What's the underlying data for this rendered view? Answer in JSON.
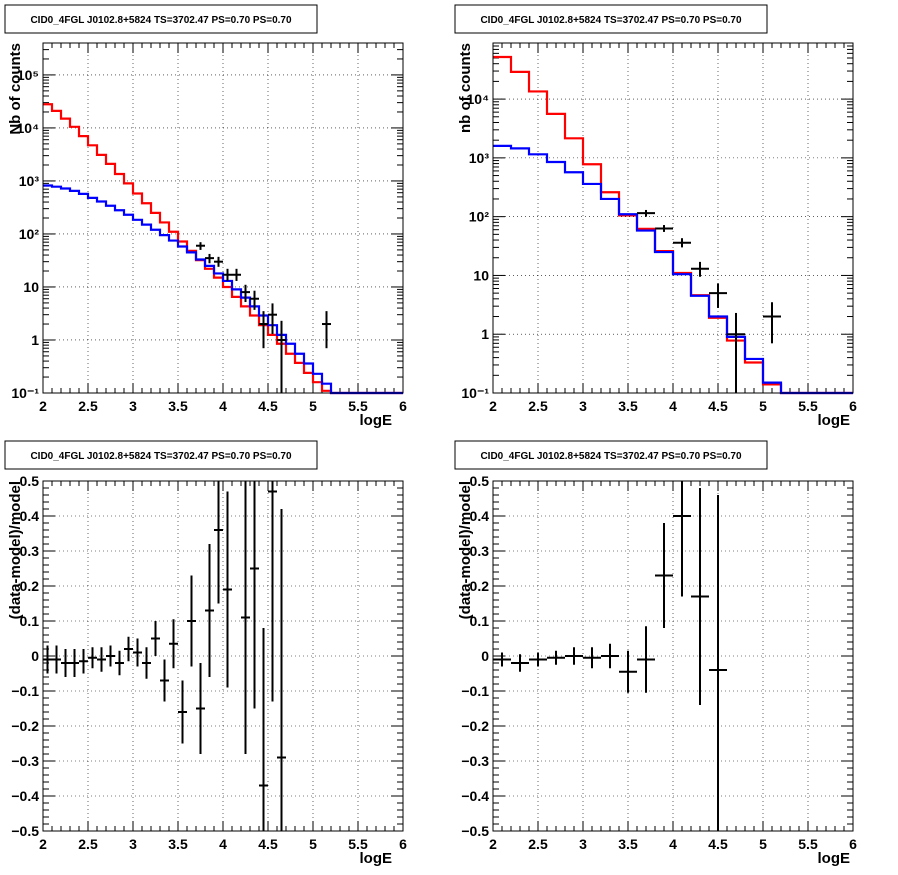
{
  "chart_data": [
    {
      "type": "line",
      "title": "CID0_4FGL J0102.8+5824 TS=3702.47 PS=0.70 PS=0.70",
      "xlabel": "logE",
      "ylabel": "Nb of counts",
      "log_y": true,
      "xlim": [
        2,
        6
      ],
      "ylim": [
        0.1,
        400000
      ],
      "grid": true,
      "xticks": [
        2,
        2.5,
        3,
        3.5,
        4,
        4.5,
        5,
        5.5,
        6
      ],
      "xtick_labels": [
        "2",
        "2.5",
        "3",
        "3.5",
        "4",
        "4.5",
        "5",
        "5.5",
        "6"
      ],
      "yticks": [
        0.1,
        1,
        10,
        100,
        1000,
        10000,
        100000
      ],
      "ytick_labels": [
        "10⁻¹",
        "1",
        "10",
        "10²",
        "10³",
        "10⁴",
        "10⁵"
      ],
      "bin_edges": [
        2.0,
        2.1,
        2.2,
        2.3,
        2.4,
        2.5,
        2.6,
        2.7,
        2.8,
        2.9,
        3.0,
        3.1,
        3.2,
        3.3,
        3.4,
        3.5,
        3.6,
        3.7,
        3.8,
        3.9,
        4.0,
        4.1,
        4.2,
        4.3,
        4.4,
        4.5,
        4.6,
        4.7,
        4.8,
        4.9,
        5.0,
        5.1,
        5.2,
        5.3,
        5.4,
        5.5,
        5.6,
        5.7,
        5.8,
        5.9,
        6.0
      ],
      "series": [
        {
          "color": "#ff0000",
          "values": [
            28000,
            21000,
            15000,
            10500,
            7000,
            4700,
            3100,
            2100,
            1350,
            900,
            580,
            380,
            250,
            165,
            110,
            72,
            48,
            32,
            22,
            15,
            10,
            6.5,
            4.3,
            2.9,
            1.9,
            1.25,
            0.85,
            0.55,
            0.37,
            0.24,
            0.16,
            0.11,
            0.1,
            0.1,
            0.1,
            0.1,
            0.1,
            0.1,
            0.1,
            0.1
          ]
        },
        {
          "color": "#0000ff",
          "values": [
            820,
            780,
            720,
            650,
            570,
            480,
            410,
            340,
            280,
            230,
            185,
            150,
            120,
            95,
            75,
            58,
            45,
            33,
            25,
            18,
            13,
            9,
            6.3,
            4.3,
            2.9,
            1.9,
            1.25,
            0.85,
            0.55,
            0.36,
            0.23,
            0.15,
            0.1,
            0.1,
            0.1,
            0.1,
            0.1,
            0.1,
            0.1,
            0.1
          ]
        },
        {
          "color": "#000000",
          "type": "errorbar",
          "points": [
            {
              "x": 3.75,
              "y": 60,
              "ylo": 50,
              "yhi": 70
            },
            {
              "x": 3.85,
              "y": 35,
              "ylo": 28,
              "yhi": 42
            },
            {
              "x": 3.95,
              "y": 30,
              "ylo": 24,
              "yhi": 37
            },
            {
              "x": 4.05,
              "y": 17,
              "ylo": 13,
              "yhi": 22
            },
            {
              "x": 4.15,
              "y": 17,
              "ylo": 13,
              "yhi": 22
            },
            {
              "x": 4.25,
              "y": 8,
              "ylo": 5.2,
              "yhi": 11
            },
            {
              "x": 4.35,
              "y": 6,
              "ylo": 3.7,
              "yhi": 8.5
            },
            {
              "x": 4.45,
              "y": 2,
              "ylo": 0.7,
              "yhi": 3.5
            },
            {
              "x": 4.55,
              "y": 3,
              "ylo": 1.3,
              "yhi": 4.9
            },
            {
              "x": 4.65,
              "y": 1,
              "ylo": 0.1,
              "yhi": 2.3
            },
            {
              "x": 5.15,
              "y": 2,
              "ylo": 0.7,
              "yhi": 3.5
            }
          ]
        }
      ]
    },
    {
      "type": "line",
      "title": "CID0_4FGL J0102.8+5824 TS=3702.47 PS=0.70 PS=0.70",
      "xlabel": "logE",
      "ylabel": "nb of counts",
      "log_y": true,
      "xlim": [
        2,
        6
      ],
      "ylim": [
        0.1,
        90000
      ],
      "grid": true,
      "xticks": [
        2,
        2.5,
        3,
        3.5,
        4,
        4.5,
        5,
        5.5,
        6
      ],
      "xtick_labels": [
        "2",
        "2.5",
        "3",
        "3.5",
        "4",
        "4.5",
        "5",
        "5.5",
        "6"
      ],
      "yticks": [
        0.1,
        1,
        10,
        100,
        1000,
        10000
      ],
      "ytick_labels": [
        "10⁻¹",
        "1",
        "10",
        "10²",
        "10³",
        "10⁴"
      ],
      "bin_edges": [
        2.0,
        2.2,
        2.4,
        2.6,
        2.8,
        3.0,
        3.2,
        3.4,
        3.6,
        3.8,
        4.0,
        4.2,
        4.4,
        4.6,
        4.8,
        5.0,
        5.2,
        5.4,
        5.6,
        5.8,
        6.0
      ],
      "series": [
        {
          "color": "#ff0000",
          "values": [
            52000,
            29000,
            13500,
            5600,
            2150,
            780,
            260,
            105,
            62,
            26,
            11,
            4.6,
            1.9,
            0.78,
            0.33,
            0.14,
            0.1,
            0.1,
            0.1,
            0.1
          ]
        },
        {
          "color": "#0000ff",
          "values": [
            1600,
            1450,
            1150,
            850,
            570,
            360,
            200,
            110,
            58,
            25,
            10.5,
            4.5,
            2.0,
            0.9,
            0.38,
            0.15,
            0.1,
            0.1,
            0.1,
            0.1
          ]
        },
        {
          "color": "#000000",
          "type": "errorbar",
          "points": [
            {
              "x": 3.7,
              "y": 115,
              "ylo": 100,
              "yhi": 130
            },
            {
              "x": 3.9,
              "y": 63,
              "ylo": 55,
              "yhi": 72
            },
            {
              "x": 4.1,
              "y": 36,
              "ylo": 30,
              "yhi": 43
            },
            {
              "x": 4.3,
              "y": 13,
              "ylo": 9.5,
              "yhi": 17
            },
            {
              "x": 4.5,
              "y": 5,
              "ylo": 2.8,
              "yhi": 7.3
            },
            {
              "x": 4.7,
              "y": 1,
              "ylo": 0.1,
              "yhi": 2.3
            },
            {
              "x": 5.1,
              "y": 2,
              "ylo": 0.7,
              "yhi": 3.5
            }
          ]
        }
      ]
    },
    {
      "type": "scatter",
      "title": "CID0_4FGL J0102.8+5824 TS=3702.47 PS=0.70 PS=0.70",
      "xlabel": "logE",
      "ylabel": "(data-model)/model",
      "xlim": [
        2,
        6
      ],
      "ylim": [
        -0.5,
        0.5
      ],
      "grid": true,
      "xticks": [
        2,
        2.5,
        3,
        3.5,
        4,
        4.5,
        5,
        5.5,
        6
      ],
      "xtick_labels": [
        "2",
        "2.5",
        "3",
        "3.5",
        "4",
        "4.5",
        "5",
        "5.5",
        "6"
      ],
      "yticks": [
        -0.5,
        -0.4,
        -0.3,
        -0.2,
        -0.1,
        0,
        0.1,
        0.2,
        0.3,
        0.4,
        0.5
      ],
      "ytick_labels": [
        "−0.5",
        "−0.4",
        "−0.3",
        "−0.2",
        "−0.1",
        "0",
        "0.1",
        "0.2",
        "0.3",
        "0.4",
        "0.5"
      ],
      "bin_width": 0.1,
      "points": [
        {
          "x": 2.05,
          "y": -0.01,
          "err": 0.04
        },
        {
          "x": 2.15,
          "y": -0.01,
          "err": 0.04
        },
        {
          "x": 2.25,
          "y": -0.02,
          "err": 0.04
        },
        {
          "x": 2.35,
          "y": -0.02,
          "err": 0.04
        },
        {
          "x": 2.45,
          "y": -0.015,
          "err": 0.035
        },
        {
          "x": 2.55,
          "y": -0.005,
          "err": 0.03
        },
        {
          "x": 2.65,
          "y": -0.01,
          "err": 0.035
        },
        {
          "x": 2.75,
          "y": 0.0,
          "err": 0.03
        },
        {
          "x": 2.85,
          "y": -0.02,
          "err": 0.035
        },
        {
          "x": 2.95,
          "y": 0.02,
          "err": 0.035
        },
        {
          "x": 3.05,
          "y": 0.01,
          "err": 0.04
        },
        {
          "x": 3.15,
          "y": -0.02,
          "err": 0.045
        },
        {
          "x": 3.25,
          "y": 0.05,
          "err": 0.05
        },
        {
          "x": 3.35,
          "y": -0.07,
          "err": 0.06
        },
        {
          "x": 3.45,
          "y": 0.035,
          "err": 0.07
        },
        {
          "x": 3.55,
          "y": -0.16,
          "err": 0.09
        },
        {
          "x": 3.65,
          "y": 0.1,
          "err": 0.13
        },
        {
          "x": 3.75,
          "y": -0.15,
          "err": 0.13
        },
        {
          "x": 3.85,
          "y": 0.13,
          "err": 0.19
        },
        {
          "x": 3.95,
          "y": 0.36,
          "err": 0.21
        },
        {
          "x": 4.05,
          "y": 0.19,
          "err": 0.28
        },
        {
          "x": 4.25,
          "y": 0.11,
          "err": 0.39
        },
        {
          "x": 4.35,
          "y": 0.25,
          "err": 0.4
        },
        {
          "x": 4.45,
          "y": -0.37,
          "err": 0.45
        },
        {
          "x": 4.55,
          "y": 0.47,
          "err": 0.6
        },
        {
          "x": 4.65,
          "y": -0.29,
          "err": 0.71
        }
      ]
    },
    {
      "type": "scatter",
      "title": "CID0_4FGL J0102.8+5824 TS=3702.47 PS=0.70 PS=0.70",
      "xlabel": "logE",
      "ylabel": "(data-model)/model",
      "xlim": [
        2,
        6
      ],
      "ylim": [
        -0.5,
        0.5
      ],
      "grid": true,
      "xticks": [
        2,
        2.5,
        3,
        3.5,
        4,
        4.5,
        5,
        5.5,
        6
      ],
      "xtick_labels": [
        "2",
        "2.5",
        "3",
        "3.5",
        "4",
        "4.5",
        "5",
        "5.5",
        "6"
      ],
      "yticks": [
        -0.5,
        -0.4,
        -0.3,
        -0.2,
        -0.1,
        0,
        0.1,
        0.2,
        0.3,
        0.4,
        0.5
      ],
      "ytick_labels": [
        "−0.5",
        "−0.4",
        "−0.3",
        "−0.2",
        "−0.1",
        "0",
        "0.1",
        "0.2",
        "0.3",
        "0.4",
        "0.5"
      ],
      "bin_width": 0.2,
      "points": [
        {
          "x": 2.1,
          "y": -0.01,
          "err": 0.02
        },
        {
          "x": 2.3,
          "y": -0.02,
          "err": 0.025
        },
        {
          "x": 2.5,
          "y": -0.01,
          "err": 0.02
        },
        {
          "x": 2.7,
          "y": -0.005,
          "err": 0.02
        },
        {
          "x": 2.9,
          "y": 0.0,
          "err": 0.025
        },
        {
          "x": 3.1,
          "y": -0.005,
          "err": 0.03
        },
        {
          "x": 3.3,
          "y": 0.0,
          "err": 0.035
        },
        {
          "x": 3.5,
          "y": -0.045,
          "err": 0.06
        },
        {
          "x": 3.7,
          "y": -0.01,
          "err": 0.095
        },
        {
          "x": 3.9,
          "y": 0.23,
          "err": 0.15
        },
        {
          "x": 4.1,
          "y": 0.4,
          "err": 0.23
        },
        {
          "x": 4.3,
          "y": 0.17,
          "err": 0.31
        },
        {
          "x": 4.5,
          "y": -0.04,
          "err": 0.5
        }
      ]
    }
  ]
}
